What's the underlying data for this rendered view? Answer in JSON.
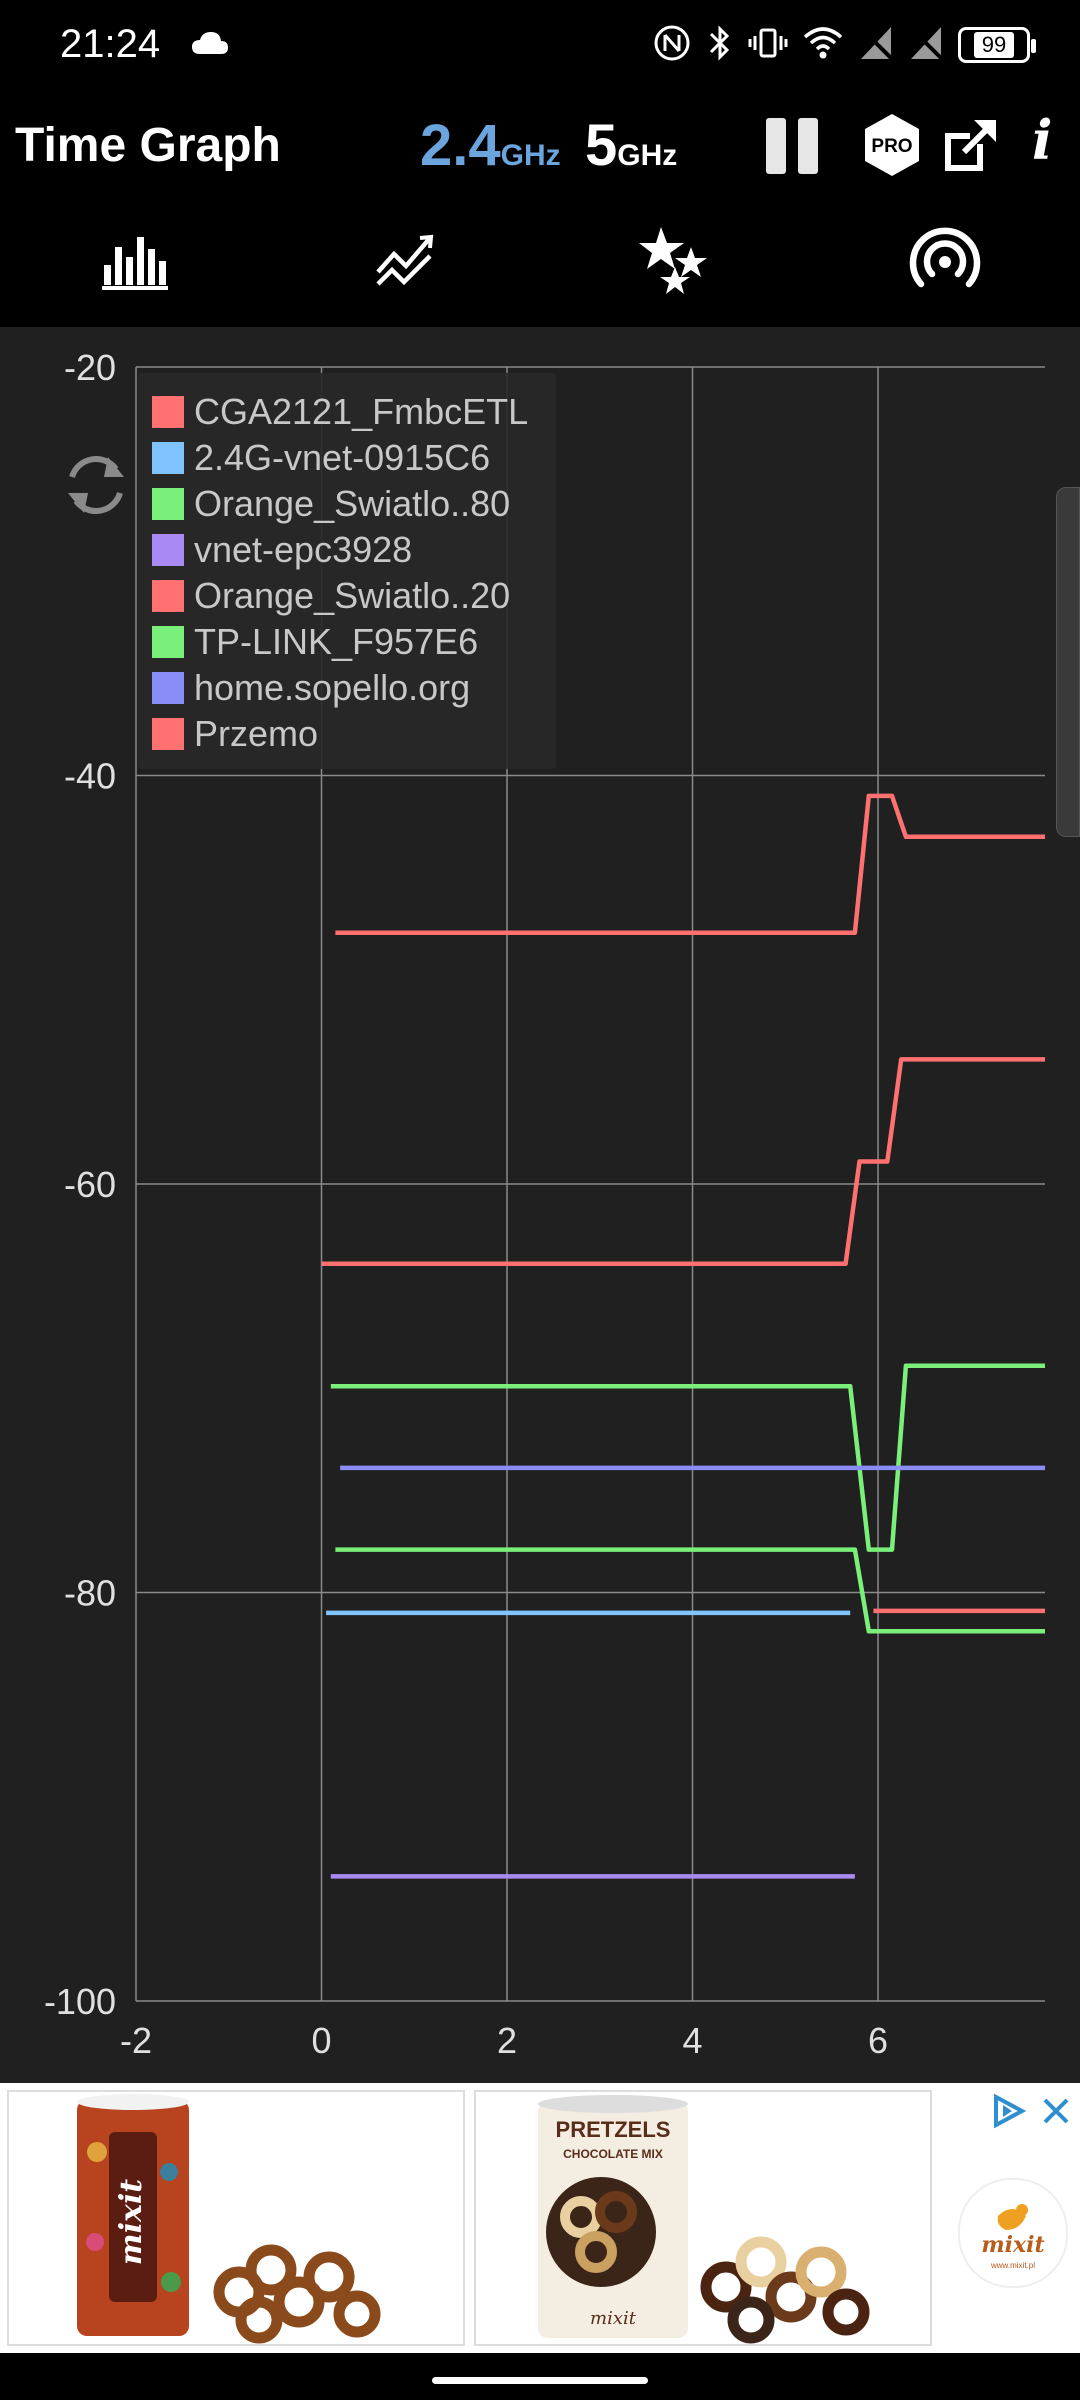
{
  "status_bar": {
    "time": "21:24",
    "battery": "99",
    "icons": [
      "cloud-icon",
      "nfc-icon",
      "bluetooth-icon",
      "vibrate-icon",
      "wifi-icon",
      "no-signal-icon",
      "no-signal-icon",
      "battery-icon"
    ]
  },
  "app_bar": {
    "title": "Time Graph",
    "band_24": {
      "num": "2.4",
      "unit": "GHz",
      "color": "#6aa6dd"
    },
    "band_5": {
      "num": "5",
      "unit": "GHz",
      "color": "#ffffff"
    },
    "pro_label": "PRO",
    "info_label": "i"
  },
  "tabs": [
    {
      "name": "channel-graph",
      "icon": "bar-chart-icon",
      "selected": false
    },
    {
      "name": "time-graph",
      "icon": "line-chart-icon",
      "selected": true
    },
    {
      "name": "channel-rating",
      "icon": "stars-icon",
      "selected": false
    },
    {
      "name": "access-points",
      "icon": "signal-broadcast-icon",
      "selected": false
    }
  ],
  "theme": {
    "accent": "#f4c317",
    "chart_bg": "#202020"
  },
  "chart_data": {
    "type": "line",
    "xlim": [
      -2.0,
      7.8
    ],
    "ylim": [
      -100,
      -20
    ],
    "x_ticks": [
      -2,
      0,
      2,
      4,
      6
    ],
    "y_ticks": [
      -20,
      -40,
      -60,
      -80,
      -100
    ],
    "grid": true,
    "legend_position": "top-left",
    "series": [
      {
        "name": "CGA2121_FmbcETL",
        "color": "#ff7070",
        "points": [
          [
            0.15,
            -47.7
          ],
          [
            5.75,
            -47.7
          ],
          [
            5.9,
            -41
          ],
          [
            6.15,
            -41
          ],
          [
            6.3,
            -43
          ],
          [
            7.8,
            -43
          ]
        ]
      },
      {
        "name": "2.4G-vnet-0915C6",
        "color": "#7fc4ff",
        "points": [
          [
            0.05,
            -81
          ],
          [
            5.7,
            -81
          ]
        ]
      },
      {
        "name": "Orange_Swiatlo..80",
        "color": "#7af07a",
        "points": [
          [
            0.1,
            -69.9
          ],
          [
            5.7,
            -69.9
          ],
          [
            5.9,
            -77.9
          ],
          [
            6.15,
            -77.9
          ],
          [
            6.3,
            -68.9
          ],
          [
            7.8,
            -68.9
          ]
        ]
      },
      {
        "name": "vnet-epc3928",
        "color": "#a98af5",
        "points": [
          [
            0.1,
            -93.9
          ],
          [
            5.75,
            -93.9
          ]
        ]
      },
      {
        "name": "Orange_Swiatlo..20",
        "color": "#ff7070",
        "points": [
          [
            0.0,
            -63.9
          ],
          [
            5.65,
            -63.9
          ],
          [
            5.8,
            -58.9
          ],
          [
            6.1,
            -58.9
          ],
          [
            6.25,
            -53.9
          ],
          [
            7.8,
            -53.9
          ]
        ]
      },
      {
        "name": "TP-LINK_F957E6",
        "color": "#7af07a",
        "points": [
          [
            0.15,
            -77.9
          ],
          [
            5.75,
            -77.9
          ],
          [
            5.9,
            -81.9
          ],
          [
            7.8,
            -81.9
          ]
        ]
      },
      {
        "name": "home.sopello.org",
        "color": "#8a8df5",
        "points": [
          [
            0.2,
            -73.9
          ],
          [
            7.8,
            -73.9
          ]
        ]
      },
      {
        "name": "Przemo",
        "color": "#ff7070",
        "points": [
          [
            5.95,
            -80.9
          ],
          [
            7.8,
            -80.9
          ]
        ]
      }
    ]
  },
  "ad": {
    "product_1_text": "mixit",
    "product_2_title": "PRETZELS",
    "product_2_subtitle": "CHOCOLATE MIX",
    "product_2_brand": "mixit",
    "logo_text": "mixit",
    "logo_url_text": "www.mixit.pl"
  }
}
